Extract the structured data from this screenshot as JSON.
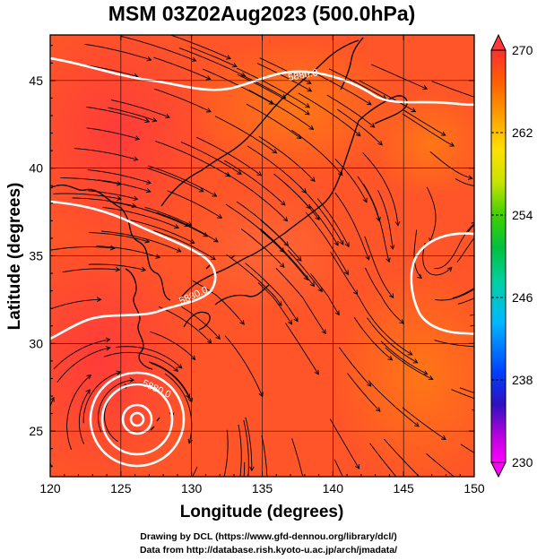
{
  "chart_data": {
    "type": "heatmap",
    "title": "MSM 03Z02Aug2023 (500.0hPa)",
    "xlabel": "Longitude (degrees)",
    "ylabel": "Latitude  (degrees)",
    "xlim": [
      120,
      150
    ],
    "ylim": [
      22.4,
      47.6
    ],
    "x_ticks": [
      120,
      125,
      130,
      135,
      140,
      145,
      150
    ],
    "y_ticks": [
      25,
      30,
      35,
      40,
      45
    ],
    "grid": true,
    "colorbar": {
      "range": [
        230,
        270
      ],
      "ticks": [
        230,
        238,
        246,
        254,
        262,
        270
      ],
      "colors": [
        "#ff00ff",
        "#a000e0",
        "#2010c0",
        "#0050ff",
        "#00b0ff",
        "#00d0a0",
        "#00c040",
        "#40d000",
        "#c0e000",
        "#ffe000",
        "#ffb000",
        "#ff8000",
        "#ff4000",
        "#ff2020"
      ]
    },
    "temperature_field": "mostly 265-269 K (red/orange) across the domain, warmest near the typhoon south of Okinawa",
    "contours": [
      {
        "label": "5880.0",
        "lon": 138.5,
        "lat": 46.0
      },
      {
        "label": "5880.0",
        "lon": 131.2,
        "lat": 33.8
      },
      {
        "label": "5880.0",
        "lon": 128.0,
        "lat": 27.3
      }
    ],
    "typhoon_center": {
      "lon": 126.3,
      "lat": 26.0
    },
    "vectors": "streamlines of wind direction"
  },
  "credits": {
    "line1": "Drawing by DCL (https://www.gfd-dennou.org/library/dcl/)",
    "line2": "Data from http://database.rish.kyoto-u.ac.jp/arch/jmadata/"
  }
}
